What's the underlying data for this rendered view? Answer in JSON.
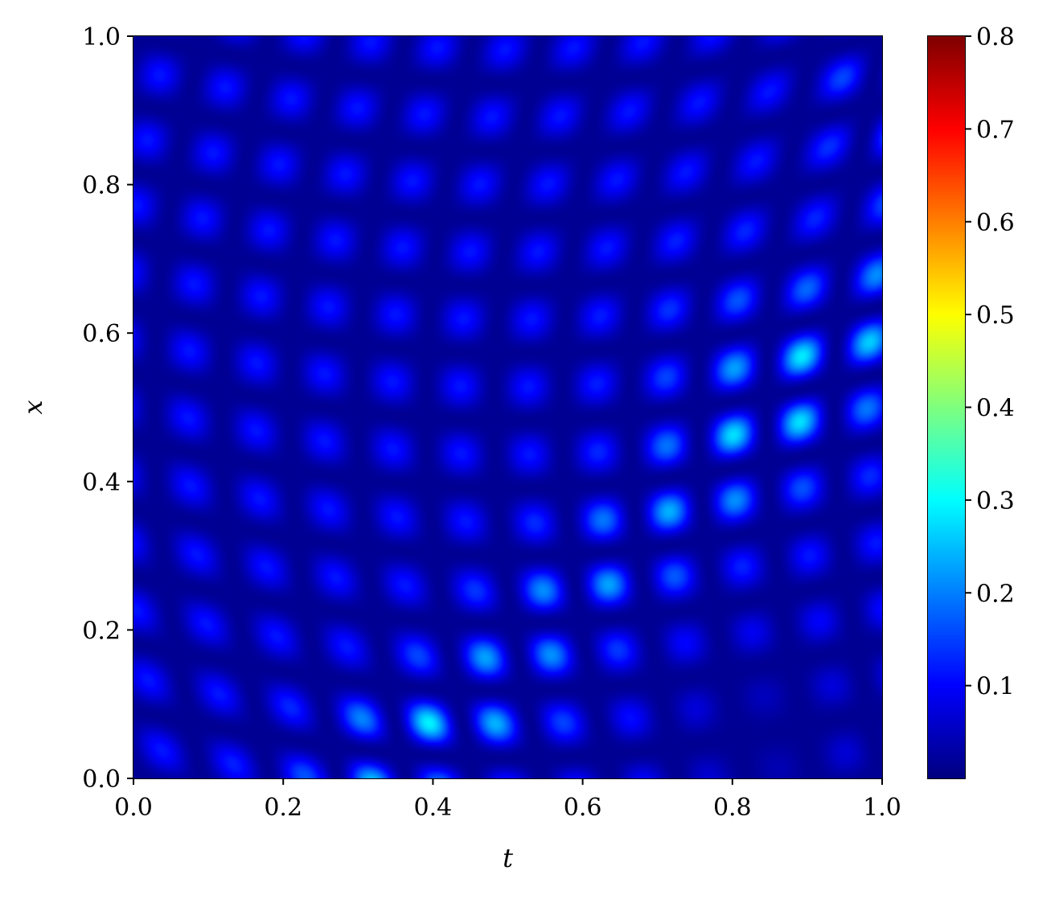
{
  "chart_data": {
    "type": "heatmap",
    "title": "",
    "xlabel": "t",
    "ylabel": "x",
    "xlim": [
      0.0,
      1.0
    ],
    "ylim": [
      0.0,
      1.0
    ],
    "x_ticks": [
      "0.0",
      "0.2",
      "0.4",
      "0.6",
      "0.8",
      "1.0"
    ],
    "y_ticks": [
      "0.0",
      "0.2",
      "0.4",
      "0.6",
      "0.8",
      "1.0"
    ],
    "colormap": "jet",
    "colorbar": {
      "range": [
        0.0,
        0.8
      ],
      "ticks": [
        "0.1",
        "0.2",
        "0.3",
        "0.4",
        "0.5",
        "0.6",
        "0.7",
        "0.8"
      ],
      "tick_values": [
        0.1,
        0.2,
        0.3,
        0.4,
        0.5,
        0.6,
        0.7,
        0.8
      ]
    },
    "grid": false,
    "description_of_field": "Checkerboard of localized maxima (about 11 peaks along t and along x) with values mostly 0.05-0.2; brightest peaks (~0.2-0.25) lie along the diagonal band from (t=0.35,x=0.05) to (t=0.9,x=0.6) and at t near 1.0, x near 0.85-0.95; low values (~0.02) in the bottom-right corner."
  }
}
